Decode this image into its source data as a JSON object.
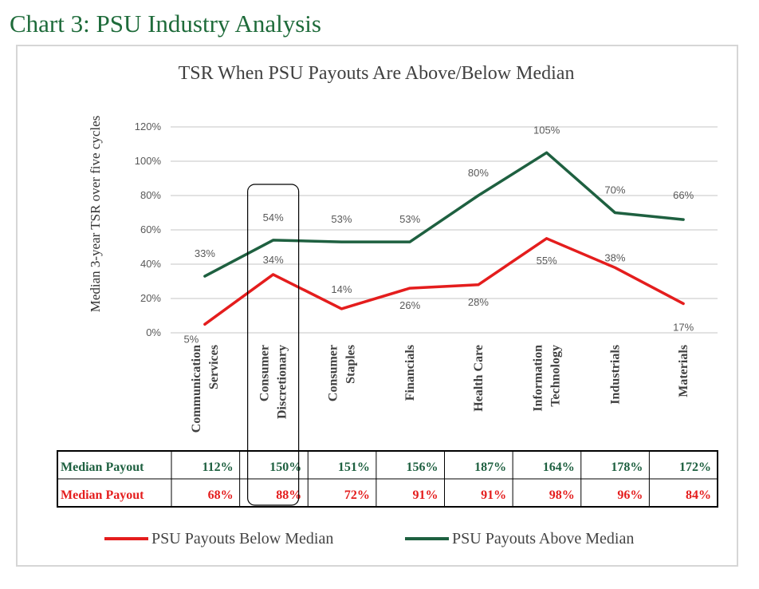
{
  "page_title": "Chart 3: PSU Industry Analysis",
  "colors": {
    "above": "#1e6040",
    "below": "#e41d1d",
    "grid": "#d9d9d9",
    "axis_text": "#595959",
    "frame": "#d6d6d6"
  },
  "chart_data": {
    "type": "line",
    "title": "TSR When PSU Payouts Are Above/Below Median",
    "ylabel": "Median 3-year TSR over five cycles",
    "ylim": [
      0,
      120
    ],
    "y_ticks": [
      "0%",
      "20%",
      "40%",
      "60%",
      "80%",
      "100%",
      "120%"
    ],
    "categories": [
      [
        "Communication",
        "Services"
      ],
      [
        "Consumer",
        "Discretionary"
      ],
      [
        "Consumer",
        "Staples"
      ],
      [
        "Financials"
      ],
      [
        "Health Care"
      ],
      [
        "Information",
        "Technology"
      ],
      [
        "Industrials"
      ],
      [
        "Materials"
      ]
    ],
    "highlighted_category": "Consumer Discretionary",
    "series": [
      {
        "name": "PSU Payouts Below Median",
        "color": "#e41d1d",
        "values": [
          5,
          34,
          14,
          26,
          28,
          55,
          38,
          17
        ],
        "labels": [
          "5%",
          "34%",
          "14%",
          "26%",
          "28%",
          "55%",
          "38%",
          "17%"
        ]
      },
      {
        "name": "PSU Payouts Above Median",
        "color": "#1e6040",
        "values": [
          33,
          54,
          53,
          53,
          80,
          105,
          70,
          66
        ],
        "labels": [
          "33%",
          "54%",
          "53%",
          "53%",
          "80%",
          "105%",
          "70%",
          "66%"
        ]
      }
    ],
    "table": {
      "rows": [
        {
          "label": "Median Payout",
          "color": "#1e6040",
          "values": [
            "112%",
            "150%",
            "151%",
            "156%",
            "187%",
            "164%",
            "178%",
            "172%"
          ]
        },
        {
          "label": "Median Payout",
          "color": "#e41d1d",
          "values": [
            "68%",
            "88%",
            "72%",
            "91%",
            "91%",
            "98%",
            "96%",
            "84%"
          ]
        }
      ]
    },
    "legend": {
      "position": "bottom",
      "entries": [
        {
          "name": "PSU Payouts Below Median",
          "color": "#e41d1d"
        },
        {
          "name": "PSU Payouts Above Median",
          "color": "#1e6040"
        }
      ]
    }
  }
}
